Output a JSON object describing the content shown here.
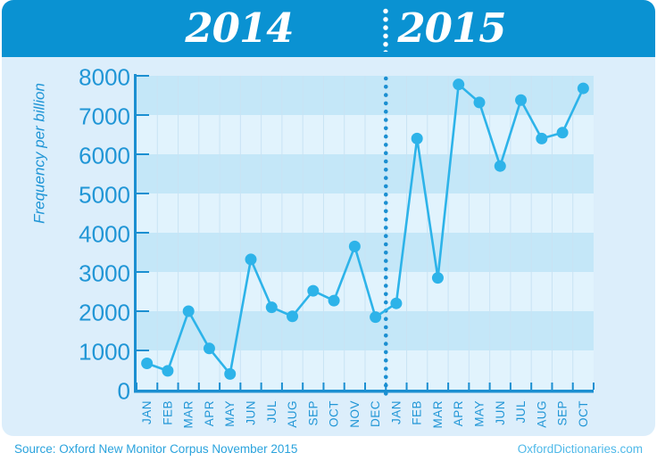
{
  "header": {
    "year_left": "2014",
    "year_right": "2015"
  },
  "footer": {
    "source": "Source: Oxford New Monitor Corpus November 2015",
    "website": "OxfordDictionaries.com"
  },
  "colors": {
    "page_bg": "#ffffff",
    "header_bg": "#0a92d2",
    "card_bg": "#dceefb",
    "band_dark": "#c4e7f8",
    "band_light": "#e1f3fd",
    "gridline": "#c9e3f4",
    "axis": "#1b8fd1",
    "line": "#2db3e9",
    "tick_text": "#2196d6",
    "header_text": "#ffffff"
  },
  "chart_data": {
    "type": "line",
    "title": "",
    "ylabel": "Frequency per billion",
    "xlabel": "",
    "legend": "none",
    "grid": "vertical-only",
    "background": "alternating horizontal bands",
    "ylim": [
      0,
      8000
    ],
    "ytick_step": 1000,
    "yticks": [
      0,
      1000,
      2000,
      3000,
      4000,
      5000,
      6000,
      7000,
      8000
    ],
    "x_groups": [
      {
        "label": "2014",
        "count": 12
      },
      {
        "label": "2015",
        "count": 10
      }
    ],
    "divider_index": 12,
    "categories": [
      "JAN",
      "FEB",
      "MAR",
      "APR",
      "MAY",
      "JUN",
      "JUL",
      "AUG",
      "SEP",
      "OCT",
      "NOV",
      "DEC",
      "JAN",
      "FEB",
      "MAR",
      "APR",
      "MAY",
      "JUN",
      "JUL",
      "AUG",
      "SEP",
      "OCT"
    ],
    "series": [
      {
        "name": "frequency per billion",
        "values": [
          670,
          480,
          2000,
          1050,
          400,
          3320,
          2100,
          1870,
          2520,
          2270,
          3650,
          1850,
          2200,
          6400,
          2850,
          7780,
          7320,
          5700,
          7380,
          6400,
          6550,
          7680
        ]
      }
    ]
  }
}
